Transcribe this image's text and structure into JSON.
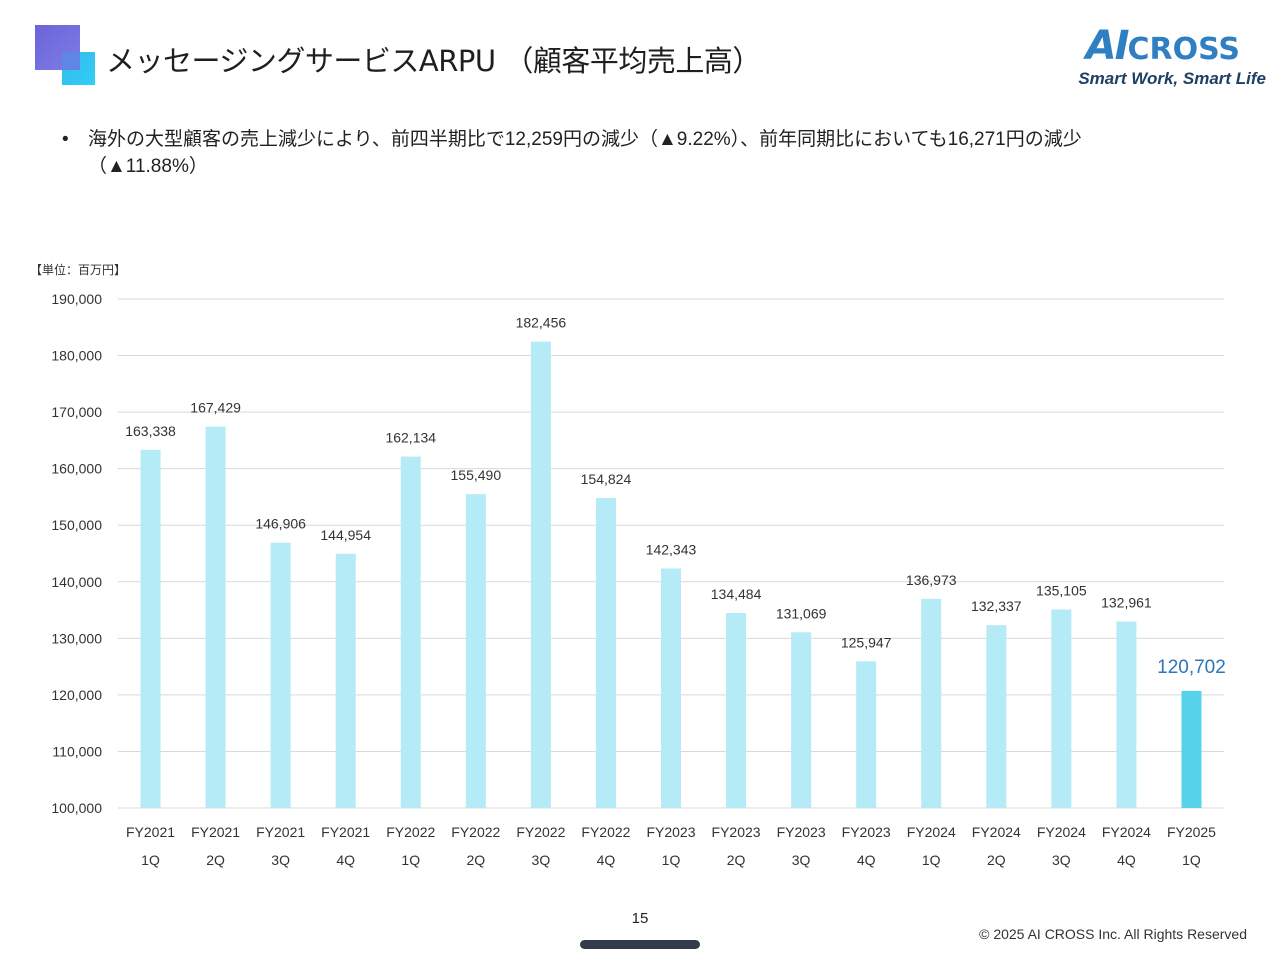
{
  "slide": {
    "title": "メッセージングサービスARPU （顧客平均売上高）",
    "logo": {
      "ai": "AI",
      "cross": "CROSS",
      "tagline": "Smart Work, Smart Life"
    },
    "bullet": {
      "marker": "•",
      "text": "海外の大型顧客の売上減少により、前四半期比で12,259円の減少（▲9.22%）、前年同期比においても16,271円の減少（▲11.88%）"
    },
    "page_number": "15",
    "copyright": "© 2025 AI CROSS Inc. All Rights Reserved"
  },
  "chart_data": {
    "type": "bar",
    "unit_label": "【単位：百万円】",
    "categories": [
      [
        "FY2021",
        "1Q"
      ],
      [
        "FY2021",
        "2Q"
      ],
      [
        "FY2021",
        "3Q"
      ],
      [
        "FY2021",
        "4Q"
      ],
      [
        "FY2022",
        "1Q"
      ],
      [
        "FY2022",
        "2Q"
      ],
      [
        "FY2022",
        "3Q"
      ],
      [
        "FY2022",
        "4Q"
      ],
      [
        "FY2023",
        "1Q"
      ],
      [
        "FY2023",
        "2Q"
      ],
      [
        "FY2023",
        "3Q"
      ],
      [
        "FY2023",
        "4Q"
      ],
      [
        "FY2024",
        "1Q"
      ],
      [
        "FY2024",
        "2Q"
      ],
      [
        "FY2024",
        "3Q"
      ],
      [
        "FY2024",
        "4Q"
      ],
      [
        "FY2025",
        "1Q"
      ]
    ],
    "values": [
      163338,
      167429,
      146906,
      144954,
      162134,
      155490,
      182456,
      154824,
      142343,
      134484,
      131069,
      125947,
      136973,
      132337,
      135105,
      132961,
      120702
    ],
    "value_labels": [
      "163,338",
      "167,429",
      "146,906",
      "144,954",
      "162,134",
      "155,490",
      "182,456",
      "154,824",
      "142,343",
      "134,484",
      "131,069",
      "125,947",
      "136,973",
      "132,337",
      "135,105",
      "132,961",
      "120,702"
    ],
    "highlight_index": 16,
    "ylim": [
      100000,
      190000
    ],
    "yticks": [
      100000,
      110000,
      120000,
      130000,
      140000,
      150000,
      160000,
      170000,
      180000,
      190000
    ],
    "ytick_labels": [
      "100,000",
      "110,000",
      "120,000",
      "130,000",
      "140,000",
      "150,000",
      "160,000",
      "170,000",
      "180,000",
      "190,000"
    ],
    "grid": true,
    "colors": {
      "bar": "#b5ebf6",
      "highlight_bar": "#56d2ea",
      "highlight_label": "#2e75b6",
      "grid": "#d9d9d9"
    }
  }
}
